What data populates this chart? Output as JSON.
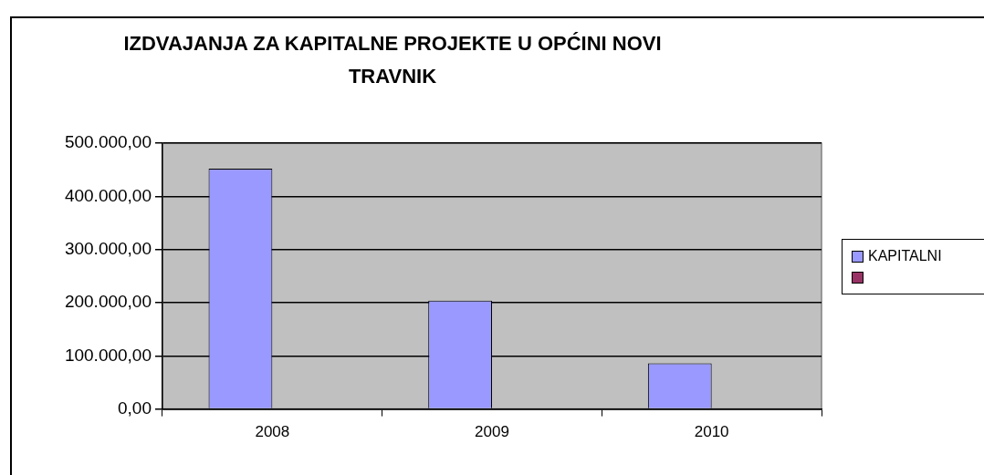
{
  "chart_data": {
    "type": "bar",
    "title": "IZDVAJANJA ZA KAPITALNE PROJEKTE U OPĆINI NOVI TRAVNIK",
    "categories": [
      "2008",
      "2009",
      "2010"
    ],
    "series": [
      {
        "name": "KAPITALNI",
        "color": "#9999ff",
        "values": [
          452000,
          204000,
          86000
        ]
      },
      {
        "color": "#993366",
        "values": [
          null,
          null,
          null
        ]
      }
    ],
    "ylim": [
      0,
      500000
    ],
    "yticks": [
      {
        "value": 0,
        "label": "0,00"
      },
      {
        "value": 100000,
        "label": "100.000,00"
      },
      {
        "value": 200000,
        "label": "200.000,00"
      },
      {
        "value": 300000,
        "label": "300.000,00"
      },
      {
        "value": 400000,
        "label": "400.000,00"
      },
      {
        "value": 500000,
        "label": "500.000,00"
      }
    ],
    "grid": "y",
    "legend": "right"
  }
}
